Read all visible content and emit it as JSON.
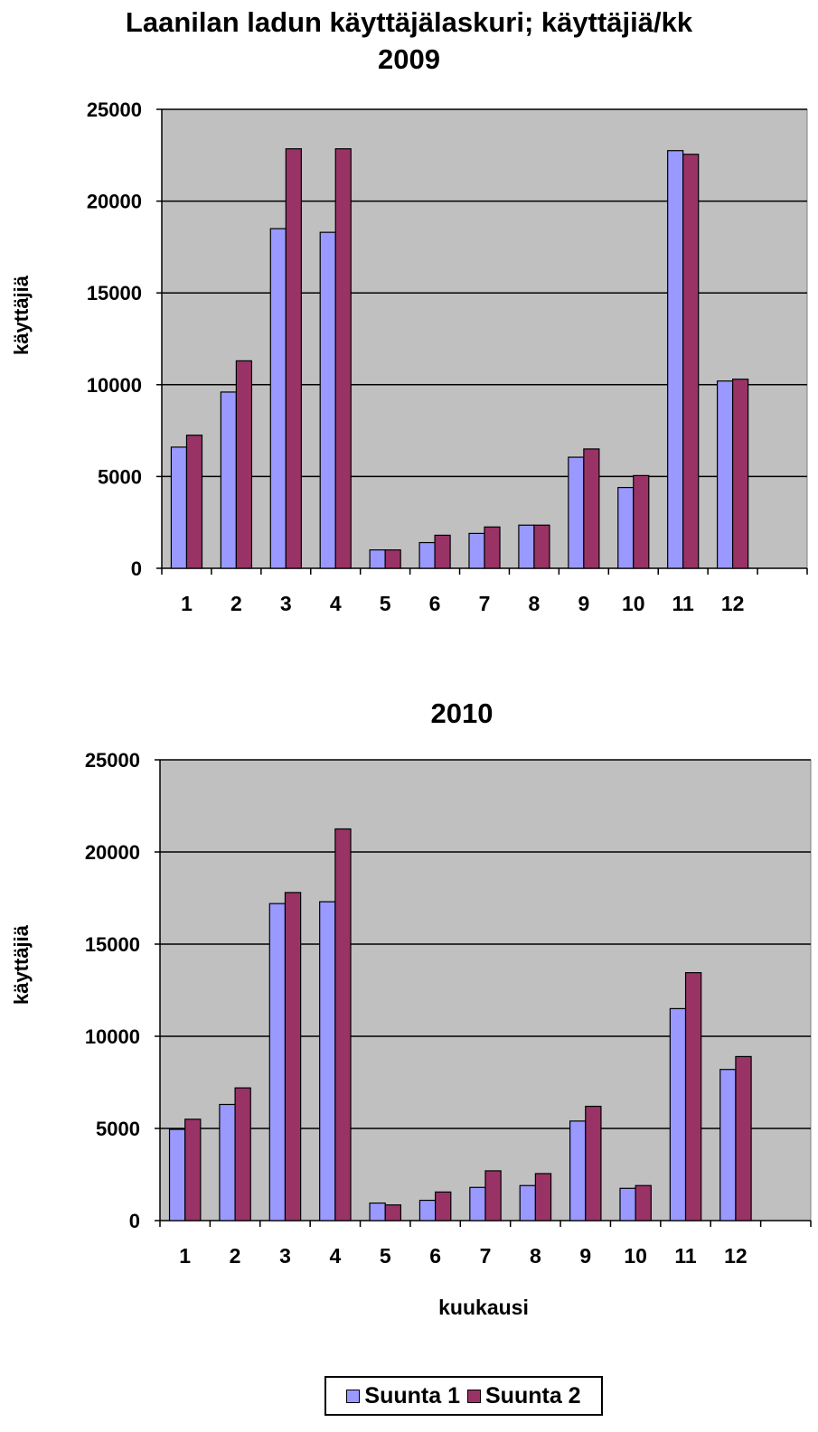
{
  "title": {
    "line1": "Laanilan ladun käyttäjälaskuri; käyttäjiä/kk",
    "line2": "2009"
  },
  "colors": {
    "suunta1": "#9999ff",
    "suunta2": "#993366",
    "plot_bg": "#c0c0c0"
  },
  "legend": {
    "items": [
      {
        "label": "Suunta 1",
        "color": "#9999ff"
      },
      {
        "label": "Suunta 2",
        "color": "#993366"
      }
    ],
    "placement": "bottom-center"
  },
  "chart_data": [
    {
      "type": "bar",
      "title": "2009",
      "xlabel": "",
      "ylabel": "käyttäjiä",
      "ylim": [
        0,
        25000
      ],
      "yticks": [
        "0",
        "5000",
        "10000",
        "15000",
        "20000",
        "25000"
      ],
      "grid": true,
      "categories": [
        "1",
        "2",
        "3",
        "4",
        "5",
        "6",
        "7",
        "8",
        "9",
        "10",
        "11",
        "12"
      ],
      "series": [
        {
          "name": "Suunta 1",
          "values": [
            6600,
            9600,
            18500,
            18300,
            1000,
            1400,
            1900,
            2350,
            6050,
            4400,
            22750,
            10200
          ]
        },
        {
          "name": "Suunta 2",
          "values": [
            7250,
            11300,
            22850,
            22850,
            1000,
            1800,
            2250,
            2350,
            6500,
            5050,
            22550,
            10300
          ]
        }
      ]
    },
    {
      "type": "bar",
      "title": "2010",
      "xlabel": "kuukausi",
      "ylabel": "käyttäjiä",
      "ylim": [
        0,
        25000
      ],
      "yticks": [
        "0",
        "5000",
        "10000",
        "15000",
        "20000",
        "25000"
      ],
      "grid": true,
      "categories": [
        "1",
        "2",
        "3",
        "4",
        "5",
        "6",
        "7",
        "8",
        "9",
        "10",
        "11",
        "12"
      ],
      "series": [
        {
          "name": "Suunta 1",
          "values": [
            4950,
            6300,
            17200,
            17300,
            950,
            1100,
            1800,
            1900,
            5400,
            1750,
            11500,
            8200
          ]
        },
        {
          "name": "Suunta 2",
          "values": [
            5500,
            7200,
            17800,
            21250,
            850,
            1550,
            2700,
            2550,
            6200,
            1900,
            13450,
            8900
          ]
        }
      ]
    }
  ]
}
